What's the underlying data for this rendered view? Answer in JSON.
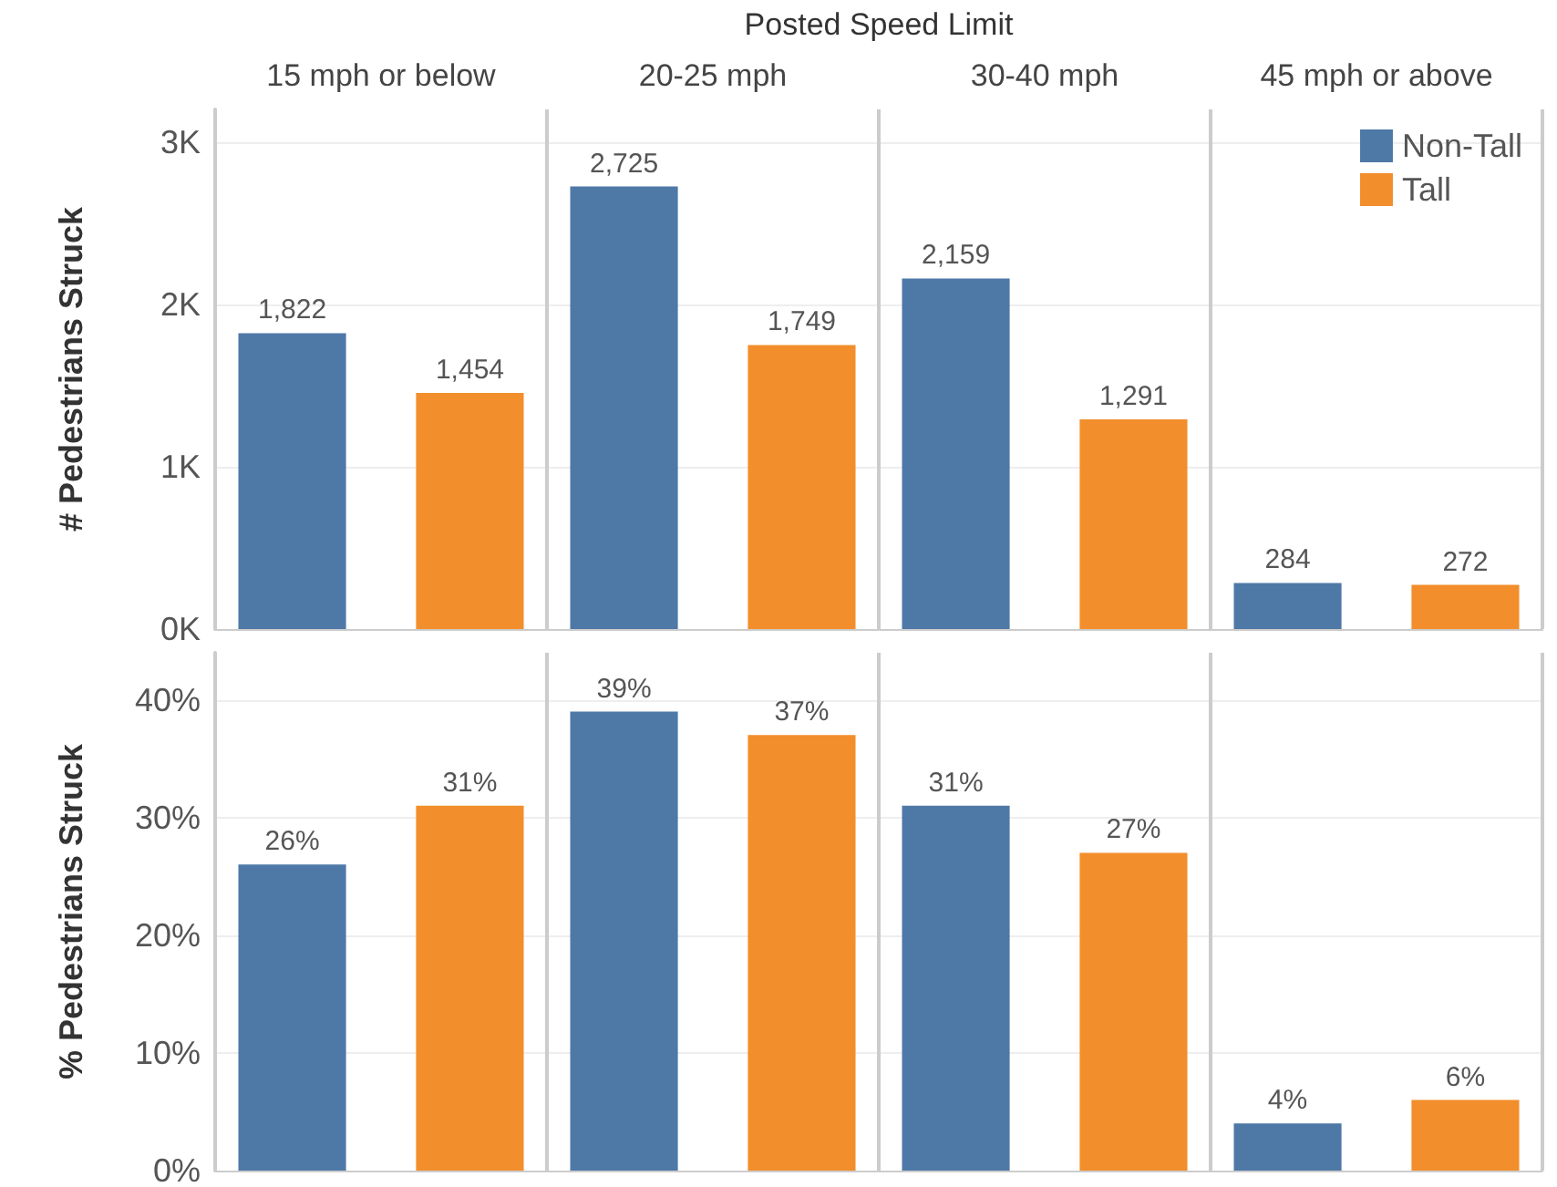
{
  "chart_data": [
    {
      "type": "bar",
      "xlabel": "Posted Speed Limit",
      "ylabel": "# Pedestrians Struck",
      "categories": [
        "15 mph or below",
        "20-25 mph",
        "30-40 mph",
        "45 mph or above"
      ],
      "series": [
        {
          "name": "Non-Tall",
          "color": "#4e79a7",
          "values": [
            1822,
            2725,
            2159,
            284
          ],
          "value_labels": [
            "1,822",
            "2,725",
            "2,159",
            "284"
          ]
        },
        {
          "name": "Tall",
          "color": "#f28e2b",
          "values": [
            1454,
            1749,
            1291,
            272
          ],
          "value_labels": [
            "1,454",
            "1,749",
            "1,291",
            "272"
          ]
        }
      ],
      "ylim": [
        0,
        3200
      ],
      "yticks": [
        {
          "value": 0,
          "label": "0K"
        },
        {
          "value": 1000,
          "label": "1K"
        },
        {
          "value": 2000,
          "label": "2K"
        },
        {
          "value": 3000,
          "label": "3K"
        }
      ],
      "grid": "y",
      "legend": "top right"
    },
    {
      "type": "bar",
      "ylabel": "% Pedestrians Struck",
      "categories": [
        null,
        null,
        null,
        null
      ],
      "tick_labels": "y",
      "series": [
        {
          "color": "#4e79a7",
          "values": [
            26,
            39,
            31,
            4
          ],
          "value_labels": [
            "26%",
            "39%",
            "31%",
            "4%"
          ]
        },
        {
          "color": "#f28e2b",
          "values": [
            31,
            37,
            27,
            6
          ],
          "value_labels": [
            "31%",
            "37%",
            "27%",
            "6%"
          ]
        }
      ],
      "ylim": [
        0,
        44
      ],
      "yticks": [
        {
          "value": 0,
          "label": "0%"
        },
        {
          "value": 10,
          "label": "10%"
        },
        {
          "value": 20,
          "label": "20%"
        },
        {
          "value": 30,
          "label": "30%"
        },
        {
          "value": 40,
          "label": "40%"
        }
      ],
      "grid": "y"
    }
  ]
}
